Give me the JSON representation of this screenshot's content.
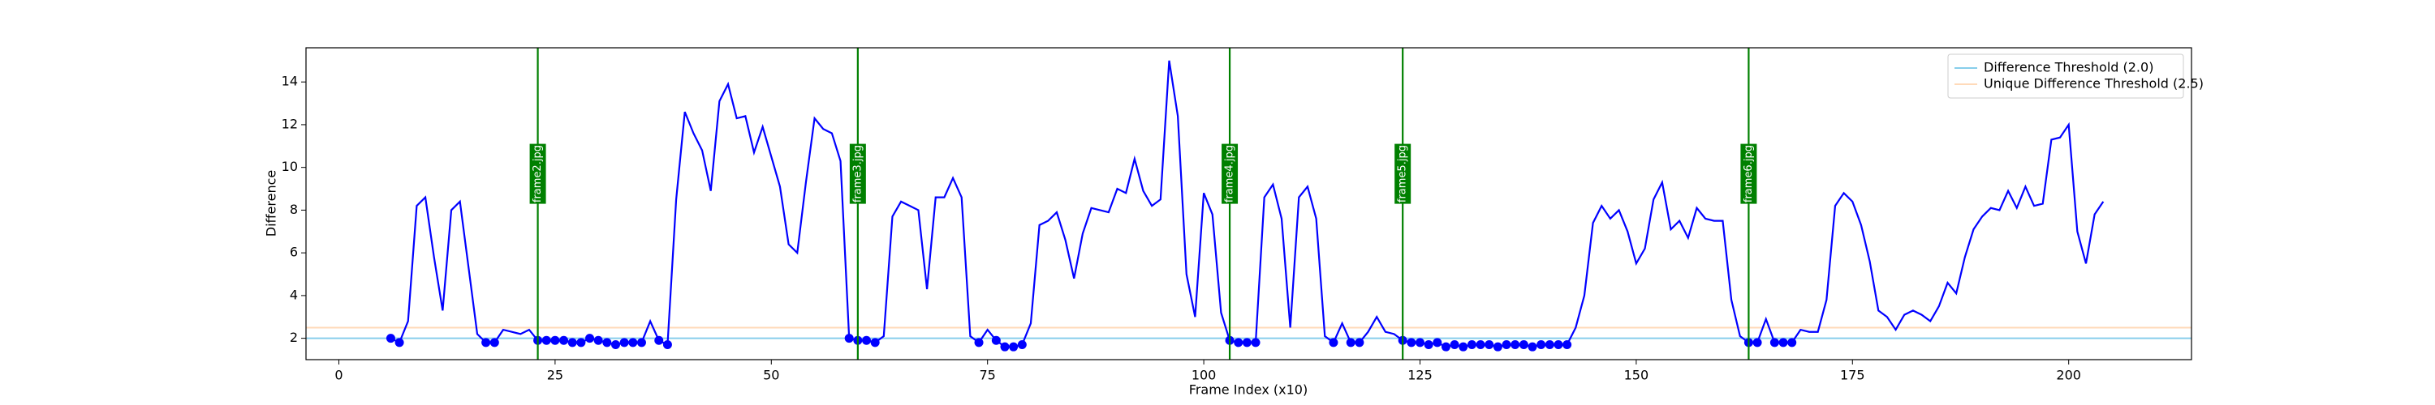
{
  "chart_data": {
    "type": "line",
    "xlabel": "Frame Index (x10)",
    "ylabel": "Difference",
    "x": [
      6,
      7,
      8,
      9,
      10,
      11,
      12,
      13,
      14,
      15,
      16,
      17,
      18,
      19,
      20,
      21,
      22,
      23,
      24,
      25,
      26,
      27,
      28,
      29,
      30,
      31,
      32,
      33,
      34,
      35,
      36,
      37,
      38,
      39,
      40,
      41,
      42,
      43,
      44,
      45,
      46,
      47,
      48,
      49,
      50,
      51,
      52,
      53,
      54,
      55,
      56,
      57,
      58,
      59,
      60,
      61,
      62,
      63,
      64,
      65,
      66,
      67,
      68,
      69,
      70,
      71,
      72,
      73,
      74,
      75,
      76,
      77,
      78,
      79,
      80,
      81,
      82,
      83,
      84,
      85,
      86,
      87,
      88,
      89,
      90,
      91,
      92,
      93,
      94,
      95,
      96,
      97,
      98,
      99,
      100,
      101,
      102,
      103,
      104,
      105,
      106,
      107,
      108,
      109,
      110,
      111,
      112,
      113,
      114,
      115,
      116,
      117,
      118,
      119,
      120,
      121,
      122,
      123,
      124,
      125,
      126,
      127,
      128,
      129,
      130,
      131,
      132,
      133,
      134,
      135,
      136,
      137,
      138,
      139,
      140,
      141,
      142,
      143,
      144,
      145,
      146,
      147,
      148,
      149,
      150,
      151,
      152,
      153,
      154,
      155,
      156,
      157,
      158,
      159,
      160,
      161,
      162,
      163,
      164,
      165,
      166,
      167,
      168,
      169,
      170,
      171,
      172,
      173,
      174,
      175,
      176,
      177,
      178,
      179,
      180,
      181,
      182,
      183,
      184,
      185,
      186,
      187,
      188,
      189,
      190,
      191,
      192,
      193,
      194,
      195,
      196,
      197,
      198,
      199,
      200,
      201,
      202,
      203,
      204
    ],
    "values": [
      2.0,
      1.8,
      2.8,
      8.2,
      8.6,
      5.8,
      3.3,
      8.0,
      8.4,
      5.3,
      2.2,
      1.8,
      1.8,
      2.4,
      2.3,
      2.2,
      2.4,
      1.9,
      1.9,
      1.9,
      1.9,
      1.8,
      1.8,
      2.0,
      1.9,
      1.8,
      1.7,
      1.8,
      1.8,
      1.8,
      2.8,
      1.9,
      1.7,
      8.5,
      12.6,
      11.6,
      10.8,
      8.9,
      13.1,
      13.9,
      12.3,
      12.4,
      10.7,
      11.9,
      10.5,
      9.1,
      6.4,
      6.0,
      9.3,
      12.3,
      11.8,
      11.6,
      10.3,
      2.0,
      1.9,
      1.9,
      1.8,
      2.1,
      7.7,
      8.4,
      8.2,
      8.0,
      4.3,
      8.6,
      8.6,
      9.5,
      8.6,
      2.1,
      1.8,
      2.4,
      1.9,
      1.6,
      1.6,
      1.7,
      2.7,
      7.3,
      7.5,
      7.9,
      6.6,
      4.8,
      6.9,
      8.1,
      8.0,
      7.9,
      9.0,
      8.8,
      10.4,
      8.9,
      8.2,
      8.5,
      15.0,
      12.4,
      5.0,
      3.0,
      8.8,
      7.8,
      3.2,
      1.9,
      1.8,
      1.8,
      1.8,
      8.6,
      9.2,
      7.6,
      2.5,
      8.6,
      9.1,
      7.6,
      2.1,
      1.8,
      2.7,
      1.8,
      1.8,
      2.3,
      3.0,
      2.3,
      2.2,
      1.9,
      1.8,
      1.8,
      1.7,
      1.8,
      1.6,
      1.7,
      1.6,
      1.7,
      1.7,
      1.7,
      1.6,
      1.7,
      1.7,
      1.7,
      1.6,
      1.7,
      1.7,
      1.7,
      1.7,
      2.5,
      4.0,
      7.4,
      8.2,
      7.6,
      8.0,
      7.0,
      5.5,
      6.2,
      8.5,
      9.3,
      7.1,
      7.5,
      6.7,
      8.1,
      7.6,
      7.5,
      7.5,
      3.8,
      2.1,
      1.8,
      1.8,
      2.9,
      1.8,
      1.8,
      1.8,
      2.4,
      2.3,
      2.3,
      3.8,
      8.2,
      8.8,
      8.4,
      7.3,
      5.6,
      3.3,
      3.0,
      2.4,
      3.1,
      3.3,
      3.1,
      2.8,
      3.5,
      4.6,
      4.1,
      5.8,
      7.1,
      7.7,
      8.1,
      8.0,
      8.9,
      8.1,
      9.1,
      8.2,
      8.3,
      11.3,
      11.4,
      12.0,
      7.0,
      5.5,
      7.8,
      8.4
    ],
    "color": "#0000ff",
    "hlines": [
      {
        "name": "Difference Threshold (2.0)",
        "value": 2.0,
        "color": "#87ceeb"
      },
      {
        "name": "Unique Difference Threshold (2.5)",
        "value": 2.5,
        "color": "#ffdab9"
      }
    ],
    "vlines": [
      {
        "x": 23,
        "label": "frame2.jpg"
      },
      {
        "x": 60,
        "label": "frame3.jpg"
      },
      {
        "x": 103,
        "label": "frame4.jpg"
      },
      {
        "x": 123,
        "label": "frame5.jpg"
      },
      {
        "x": 163,
        "label": "frame6.jpg"
      }
    ],
    "vline_color": "#008000",
    "xlim": [
      -3.8,
      214.2
    ],
    "xticks": [
      0,
      25,
      50,
      75,
      100,
      125,
      150,
      175,
      200
    ],
    "ylim": [
      1.0,
      15.6
    ],
    "yticks": [
      2,
      4,
      6,
      8,
      10,
      12,
      14
    ],
    "legend": "upper right"
  }
}
